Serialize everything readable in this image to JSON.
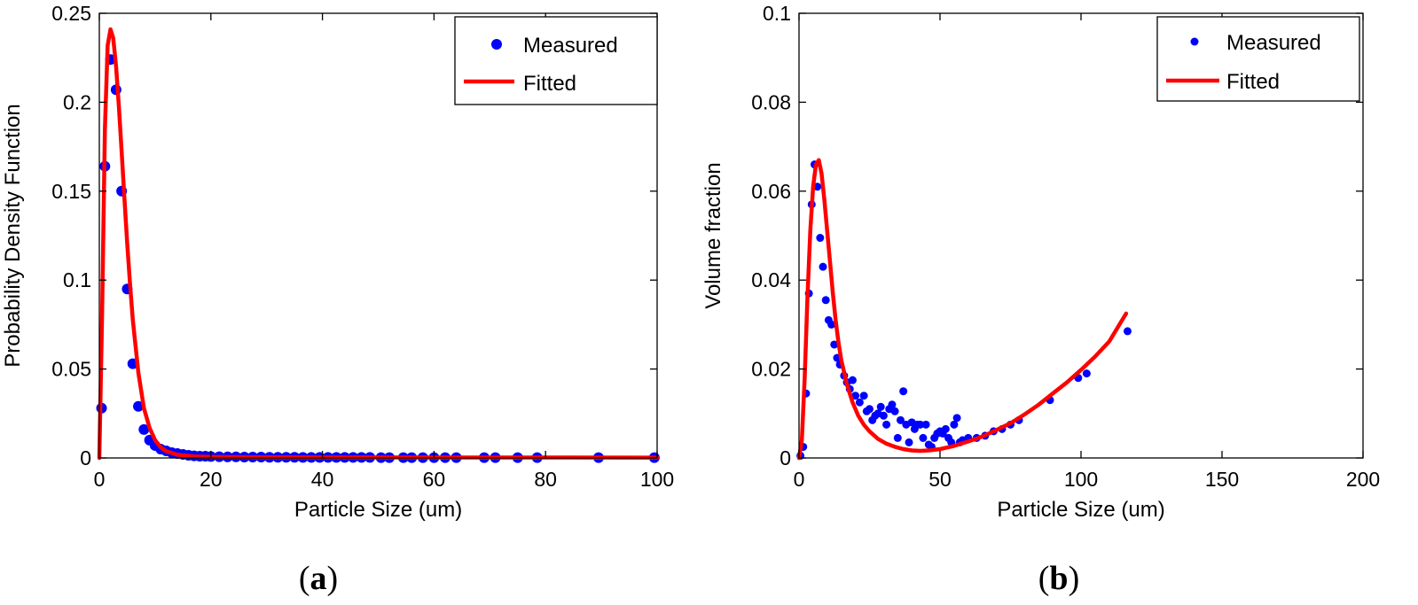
{
  "chart_data": [
    {
      "type": "scatter",
      "caption": {
        "open": "(",
        "letter": "a",
        "close": ")"
      },
      "xlabel": "Particle Size (um)",
      "ylabel": "Probability Density Function",
      "xlim": [
        0,
        100
      ],
      "ylim": [
        0,
        0.25
      ],
      "xticks": [
        0,
        20,
        40,
        60,
        80,
        100
      ],
      "yticks": [
        0,
        0.05,
        0.1,
        0.15,
        0.2,
        0.25
      ],
      "xtick_labels": [
        "0",
        "20",
        "40",
        "60",
        "80",
        "100"
      ],
      "ytick_labels": [
        "0",
        "0.05",
        "0.1",
        "0.15",
        "0.2",
        "0.25"
      ],
      "grid": false,
      "legend": {
        "position": "top-right",
        "entries": [
          "Measured",
          "Fitted"
        ]
      },
      "series": [
        {
          "name": "Measured",
          "kind": "points",
          "color": "#0000ff",
          "points": [
            [
              0.4,
              0.028
            ],
            [
              1.0,
              0.164
            ],
            [
              2.0,
              0.224
            ],
            [
              3.0,
              0.207
            ],
            [
              4.0,
              0.15
            ],
            [
              5.0,
              0.095
            ],
            [
              6.0,
              0.053
            ],
            [
              7.0,
              0.029
            ],
            [
              8.0,
              0.016
            ],
            [
              9.0,
              0.01
            ],
            [
              10.0,
              0.007
            ],
            [
              11.0,
              0.005
            ],
            [
              12.0,
              0.004
            ],
            [
              13.0,
              0.003
            ],
            [
              14.0,
              0.0025
            ],
            [
              15.0,
              0.002
            ],
            [
              16.0,
              0.0015
            ],
            [
              17.0,
              0.0012
            ],
            [
              18.0,
              0.001
            ],
            [
              19.0,
              0.001
            ],
            [
              20.0,
              0.0008
            ],
            [
              21.5,
              0.0007
            ],
            [
              23.0,
              0.0006
            ],
            [
              24.5,
              0.0006
            ],
            [
              26.0,
              0.0005
            ],
            [
              27.5,
              0.0005
            ],
            [
              29.0,
              0.0005
            ],
            [
              30.5,
              0.0004
            ],
            [
              32.0,
              0.0004
            ],
            [
              33.5,
              0.0004
            ],
            [
              35.0,
              0.0004
            ],
            [
              36.5,
              0.0003
            ],
            [
              38.0,
              0.0003
            ],
            [
              39.5,
              0.0003
            ],
            [
              41.0,
              0.0003
            ],
            [
              42.5,
              0.0003
            ],
            [
              44.0,
              0.0003
            ],
            [
              45.5,
              0.0003
            ],
            [
              47.0,
              0.0003
            ],
            [
              48.5,
              0.0003
            ],
            [
              50.5,
              0.0002
            ],
            [
              52.0,
              0.0002
            ],
            [
              54.5,
              0.0002
            ],
            [
              56.0,
              0.0002
            ],
            [
              58.0,
              0.0002
            ],
            [
              60.0,
              0.0002
            ],
            [
              62.0,
              0.0002
            ],
            [
              64.0,
              0.0002
            ],
            [
              69.0,
              0.0002
            ],
            [
              71.0,
              0.0002
            ],
            [
              75.0,
              0.0002
            ],
            [
              78.5,
              0.0002
            ],
            [
              89.5,
              0.0002
            ],
            [
              99.5,
              0.0002
            ]
          ]
        },
        {
          "name": "Fitted",
          "kind": "line",
          "color": "#ff0000",
          "points": [
            [
              0.0,
              0.0
            ],
            [
              0.5,
              0.08
            ],
            [
              1.0,
              0.185
            ],
            [
              1.5,
              0.232
            ],
            [
              2.0,
              0.241
            ],
            [
              2.5,
              0.236
            ],
            [
              3.0,
              0.22
            ],
            [
              3.5,
              0.198
            ],
            [
              4.0,
              0.172
            ],
            [
              4.5,
              0.146
            ],
            [
              5.0,
              0.121
            ],
            [
              5.5,
              0.098
            ],
            [
              6.0,
              0.078
            ],
            [
              7.0,
              0.048
            ],
            [
              8.0,
              0.028
            ],
            [
              9.0,
              0.017
            ],
            [
              10.0,
              0.01
            ],
            [
              11.0,
              0.006
            ],
            [
              12.0,
              0.0038
            ],
            [
              14.0,
              0.0018
            ],
            [
              17.0,
              0.0009
            ],
            [
              20.0,
              0.0006
            ],
            [
              30.0,
              0.0004
            ],
            [
              50.0,
              0.0003
            ],
            [
              100.0,
              0.0002
            ]
          ]
        }
      ]
    },
    {
      "type": "scatter",
      "caption": {
        "open": "(",
        "letter": "b",
        "close": ")"
      },
      "xlabel": "Particle Size (um)",
      "ylabel": "Volume fraction",
      "xlim": [
        0,
        200
      ],
      "ylim": [
        0,
        0.1
      ],
      "xticks": [
        0,
        50,
        100,
        150,
        200
      ],
      "yticks": [
        0,
        0.02,
        0.04,
        0.06,
        0.08,
        0.1
      ],
      "xtick_labels": [
        "0",
        "50",
        "100",
        "150",
        "200"
      ],
      "ytick_labels": [
        "0",
        "0.02",
        "0.04",
        "0.06",
        "0.08",
        "0.1"
      ],
      "grid": false,
      "legend": {
        "position": "top-right",
        "entries": [
          "Measured",
          "Fitted"
        ]
      },
      "series": [
        {
          "name": "Measured",
          "kind": "points",
          "color": "#0000ff",
          "points": [
            [
              0.5,
              0.0005
            ],
            [
              1.5,
              0.0025
            ],
            [
              2.5,
              0.0145
            ],
            [
              3.5,
              0.037
            ],
            [
              4.5,
              0.057
            ],
            [
              5.5,
              0.066
            ],
            [
              6.5,
              0.061
            ],
            [
              7.5,
              0.0495
            ],
            [
              8.5,
              0.043
            ],
            [
              9.5,
              0.0355
            ],
            [
              10.5,
              0.031
            ],
            [
              11.5,
              0.03
            ],
            [
              12.5,
              0.0255
            ],
            [
              13.5,
              0.0225
            ],
            [
              14.5,
              0.021
            ],
            [
              16.0,
              0.0185
            ],
            [
              17.0,
              0.017
            ],
            [
              18.0,
              0.0155
            ],
            [
              19.0,
              0.0175
            ],
            [
              20.0,
              0.014
            ],
            [
              21.5,
              0.0125
            ],
            [
              23.0,
              0.014
            ],
            [
              24.0,
              0.0105
            ],
            [
              25.0,
              0.011
            ],
            [
              26.0,
              0.0085
            ],
            [
              27.0,
              0.0095
            ],
            [
              28.0,
              0.01
            ],
            [
              29.0,
              0.0115
            ],
            [
              30.0,
              0.0095
            ],
            [
              31.0,
              0.0075
            ],
            [
              32.0,
              0.011
            ],
            [
              33.0,
              0.012
            ],
            [
              34.0,
              0.0105
            ],
            [
              35.0,
              0.0045
            ],
            [
              36.0,
              0.0085
            ],
            [
              37.0,
              0.015
            ],
            [
              38.0,
              0.0075
            ],
            [
              39.0,
              0.0035
            ],
            [
              40.0,
              0.008
            ],
            [
              41.0,
              0.0065
            ],
            [
              42.0,
              0.0075
            ],
            [
              43.0,
              0.0075
            ],
            [
              44.0,
              0.0045
            ],
            [
              45.0,
              0.0075
            ],
            [
              46.0,
              0.003
            ],
            [
              47.0,
              0.0025
            ],
            [
              48.0,
              0.0045
            ],
            [
              49.0,
              0.0055
            ],
            [
              50.0,
              0.006
            ],
            [
              51.0,
              0.0055
            ],
            [
              52.0,
              0.0065
            ],
            [
              53.0,
              0.0045
            ],
            [
              54.0,
              0.0035
            ],
            [
              55.0,
              0.0075
            ],
            [
              56.0,
              0.009
            ],
            [
              57.0,
              0.0035
            ],
            [
              58.0,
              0.004
            ],
            [
              60.0,
              0.0045
            ],
            [
              63.0,
              0.0045
            ],
            [
              66.0,
              0.005
            ],
            [
              69.0,
              0.006
            ],
            [
              72.0,
              0.0065
            ],
            [
              75.0,
              0.0075
            ],
            [
              78.0,
              0.0085
            ],
            [
              89.0,
              0.013
            ],
            [
              99.0,
              0.018
            ],
            [
              102.0,
              0.019
            ],
            [
              116.5,
              0.0285
            ]
          ]
        },
        {
          "name": "Fitted",
          "kind": "line",
          "color": "#ff0000",
          "points": [
            [
              0.0,
              0.0
            ],
            [
              1.0,
              0.004
            ],
            [
              2.0,
              0.018
            ],
            [
              3.0,
              0.036
            ],
            [
              4.0,
              0.051
            ],
            [
              5.0,
              0.061
            ],
            [
              6.0,
              0.066
            ],
            [
              7.0,
              0.067
            ],
            [
              8.0,
              0.064
            ],
            [
              9.0,
              0.058
            ],
            [
              10.0,
              0.051
            ],
            [
              11.0,
              0.044
            ],
            [
              12.0,
              0.037
            ],
            [
              13.0,
              0.031
            ],
            [
              14.0,
              0.026
            ],
            [
              15.0,
              0.022
            ],
            [
              17.0,
              0.0165
            ],
            [
              19.0,
              0.0125
            ],
            [
              21.0,
              0.0095
            ],
            [
              23.0,
              0.0075
            ],
            [
              25.0,
              0.006
            ],
            [
              28.0,
              0.0043
            ],
            [
              31.0,
              0.0032
            ],
            [
              34.0,
              0.0025
            ],
            [
              37.0,
              0.002
            ],
            [
              40.0,
              0.0017
            ],
            [
              43.0,
              0.0016
            ],
            [
              46.0,
              0.0017
            ],
            [
              50.0,
              0.002
            ],
            [
              55.0,
              0.0027
            ],
            [
              60.0,
              0.0037
            ],
            [
              65.0,
              0.0048
            ],
            [
              70.0,
              0.0063
            ],
            [
              75.0,
              0.0078
            ],
            [
              80.0,
              0.0098
            ],
            [
              85.0,
              0.012
            ],
            [
              90.0,
              0.0145
            ],
            [
              95.0,
              0.017
            ],
            [
              100.0,
              0.0198
            ],
            [
              105.0,
              0.0228
            ],
            [
              110.0,
              0.0262
            ],
            [
              116.0,
              0.0325
            ]
          ]
        }
      ]
    }
  ]
}
